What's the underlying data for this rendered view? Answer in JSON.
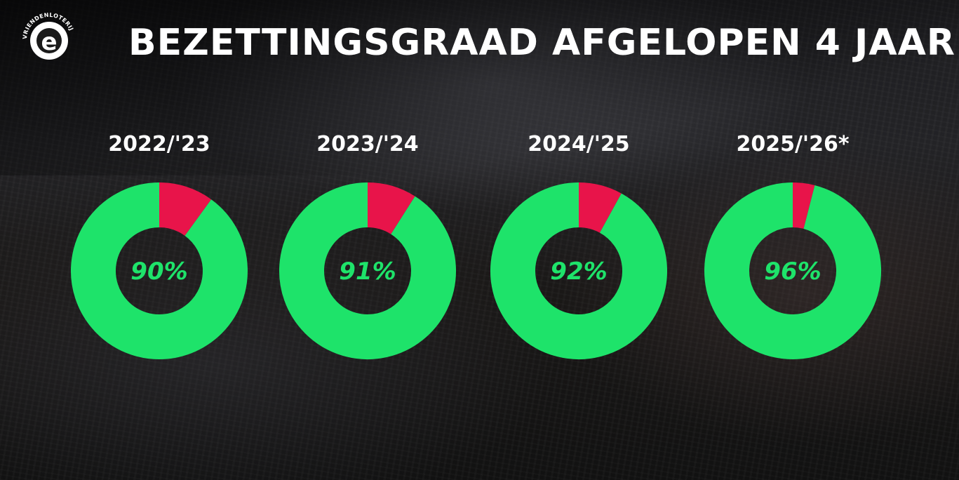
{
  "header": {
    "title": "BEZETTINGSGRAAD AFGELOPEN 4 JAAR",
    "logo_text": "VRIENDENLOTERIJ",
    "logo_letter": "e"
  },
  "colors": {
    "filled": "#1ee36a",
    "remaining": "#e8144a",
    "title": "#ffffff"
  },
  "chart_data": {
    "type": "pie",
    "title": "BEZETTINGSGRAAD AFGELOPEN 4 JAAR",
    "charts": [
      {
        "season": "2022/'23",
        "value": 90,
        "label": "90%"
      },
      {
        "season": "2023/'24",
        "value": 91,
        "label": "91%"
      },
      {
        "season": "2024/'25",
        "value": 92,
        "label": "92%"
      },
      {
        "season": "2025/'26*",
        "value": 96,
        "label": "96%"
      }
    ],
    "max": 100
  }
}
